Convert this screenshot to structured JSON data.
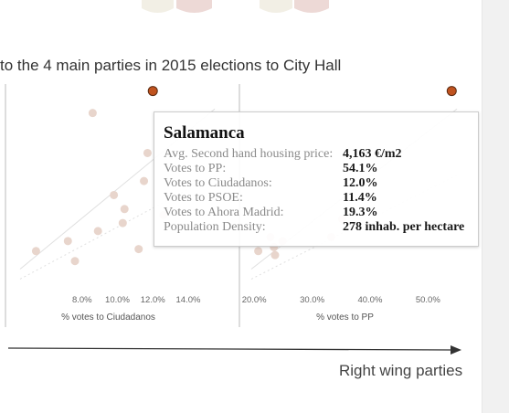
{
  "header": {
    "title": "to the 4 main parties in 2015 elections to City Hall"
  },
  "colors": {
    "point": "#e8d5cc",
    "highlight": "#c0531f",
    "axis": "#bbbbbb",
    "trend": "#e0e0e0",
    "arrow": "#333333"
  },
  "chart_data": [
    {
      "type": "scatter",
      "xlabel": "% votes to Ciudadanos",
      "ylabel": "",
      "xlim": [
        4.5,
        15.5
      ],
      "ylim": [
        0,
        100
      ],
      "x_ticks": [
        "8.0%",
        "10.0%",
        "12.0%",
        "14.0%"
      ],
      "x_tick_values": [
        8,
        10,
        12,
        14
      ],
      "points": [
        {
          "x": 5.4,
          "y": 17
        },
        {
          "x": 7.2,
          "y": 22
        },
        {
          "x": 7.6,
          "y": 12
        },
        {
          "x": 8.9,
          "y": 27
        },
        {
          "x": 9.8,
          "y": 45
        },
        {
          "x": 10.3,
          "y": 31
        },
        {
          "x": 10.4,
          "y": 38
        },
        {
          "x": 11.2,
          "y": 18
        },
        {
          "x": 11.5,
          "y": 52
        },
        {
          "x": 11.7,
          "y": 66
        },
        {
          "x": 8.6,
          "y": 86
        },
        {
          "x": 12.6,
          "y": 35
        }
      ],
      "highlight": {
        "x": 12.0,
        "y": 97
      }
    },
    {
      "type": "scatter",
      "xlabel": "% votes to PP",
      "ylabel": "",
      "xlim": [
        19.5,
        55
      ],
      "ylim": [
        0,
        100
      ],
      "x_ticks": [
        "20.0%",
        "30.0%",
        "40.0%",
        "50.0%"
      ],
      "x_tick_values": [
        20,
        30,
        40,
        50
      ],
      "points": [
        {
          "x": 20.7,
          "y": 17
        },
        {
          "x": 22.8,
          "y": 24
        },
        {
          "x": 23.6,
          "y": 15
        },
        {
          "x": 24.9,
          "y": 22
        },
        {
          "x": 23.4,
          "y": 19
        },
        {
          "x": 33.3,
          "y": 24
        },
        {
          "x": 35.2,
          "y": 33
        }
      ],
      "highlight": {
        "x": 54.1,
        "y": 97
      }
    }
  ],
  "tooltip": {
    "title": "Salamanca",
    "rows": [
      {
        "label": "Avg. Second hand housing price:",
        "value": "4,163 €/m2"
      },
      {
        "label": "Votes to PP:",
        "value": "54.1%"
      },
      {
        "label": "Votes to Ciudadanos:",
        "value": "12.0%"
      },
      {
        "label": "Votes to PSOE:",
        "value": "11.4%"
      },
      {
        "label": "Votes to Ahora Madrid:",
        "value": "19.3%"
      },
      {
        "label": "Population Density:",
        "value": "278 inhab. per hectare"
      }
    ]
  },
  "arrow": {
    "label": "Right wing parties"
  }
}
